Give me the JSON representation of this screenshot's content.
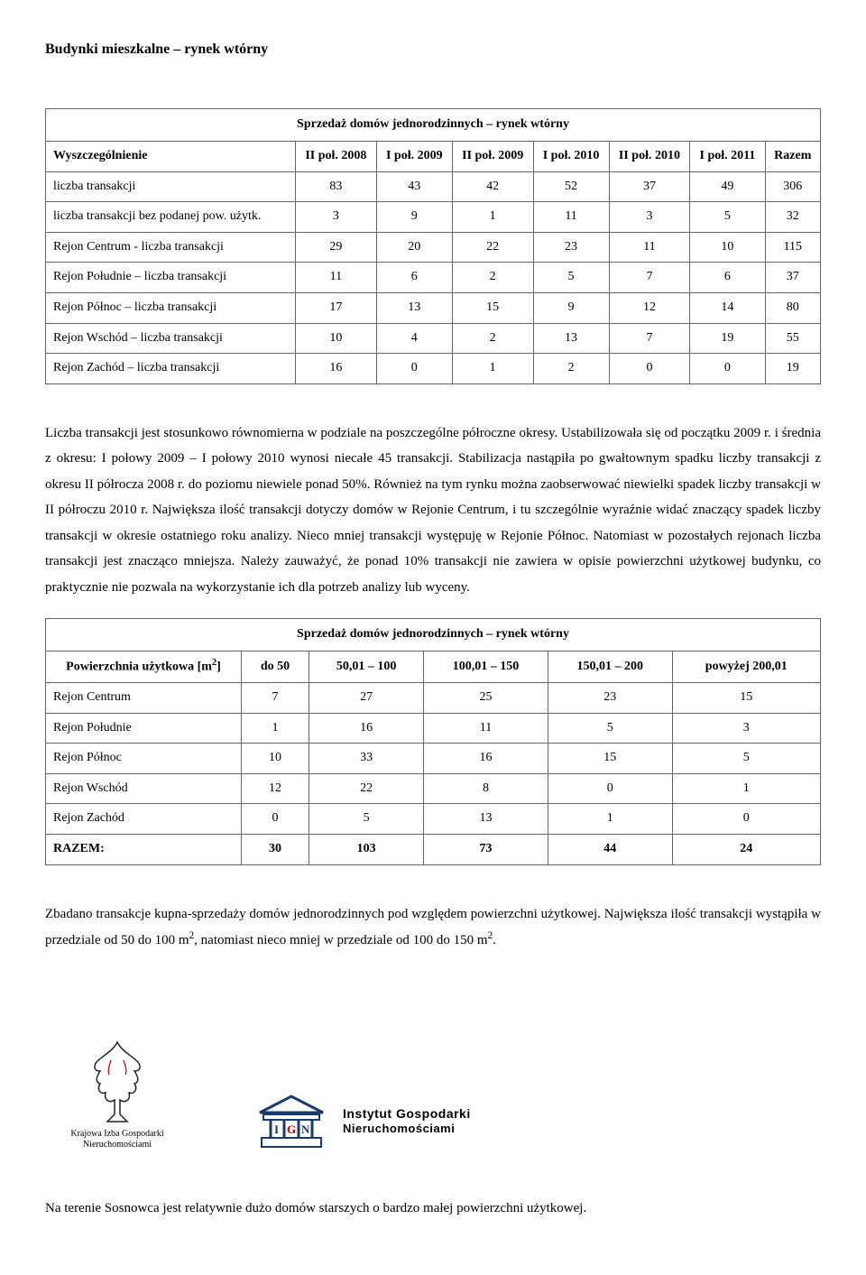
{
  "title": "Budynki mieszkalne – rynek wtórny",
  "table1": {
    "title": "Sprzedaż domów jednorodzinnych – rynek wtórny",
    "col_label": "Wyszczególnienie",
    "columns": [
      "II poł. 2008",
      "I poł. 2009",
      "II poł. 2009",
      "I poł. 2010",
      "II poł. 2010",
      "I poł. 2011",
      "Razem"
    ],
    "rows": [
      {
        "label": "liczba transakcji",
        "vals": [
          "83",
          "43",
          "42",
          "52",
          "37",
          "49",
          "306"
        ]
      },
      {
        "label": "liczba transakcji bez podanej pow. użytk.",
        "vals": [
          "3",
          "9",
          "1",
          "11",
          "3",
          "5",
          "32"
        ]
      },
      {
        "label": "Rejon Centrum - liczba transakcji",
        "vals": [
          "29",
          "20",
          "22",
          "23",
          "11",
          "10",
          "115"
        ]
      },
      {
        "label": "Rejon Południe – liczba transakcji",
        "vals": [
          "11",
          "6",
          "2",
          "5",
          "7",
          "6",
          "37"
        ]
      },
      {
        "label": "Rejon Północ – liczba transakcji",
        "vals": [
          "17",
          "13",
          "15",
          "9",
          "12",
          "14",
          "80"
        ]
      },
      {
        "label": "Rejon Wschód – liczba transakcji",
        "vals": [
          "10",
          "4",
          "2",
          "13",
          "7",
          "19",
          "55"
        ]
      },
      {
        "label": "Rejon Zachód – liczba transakcji",
        "vals": [
          "16",
          "0",
          "1",
          "2",
          "0",
          "0",
          "19"
        ]
      }
    ]
  },
  "para1": "Liczba transakcji jest stosunkowo równomierna w podziale na poszczególne półroczne okresy.  Ustabilizowała się od początku 2009 r. i średnia z okresu: I połowy 2009 – I połowy 2010 wynosi niecałe 45 transakcji. Stabilizacja nastąpiła po gwałtownym spadku liczby transakcji z okresu II półrocza 2008 r. do poziomu niewiele ponad 50%. Również na tym rynku można zaobserwować niewielki spadek liczby transakcji w II półroczu 2010 r. Największa ilość transakcji dotyczy domów w Rejonie Centrum, i tu szczególnie wyraźnie widać znaczący spadek liczby transakcji w okresie ostatniego roku analizy. Nieco mniej transakcji występuję w Rejonie Północ. Natomiast w pozostałych rejonach liczba transakcji jest znacząco mniejsza. Należy zauważyć, że ponad 10% transakcji nie zawiera w opisie powierzchni użytkowej budynku, co praktycznie nie pozwala na wykorzystanie ich dla potrzeb analizy lub wyceny.",
  "table2": {
    "title": "Sprzedaż domów jednorodzinnych – rynek wtórny",
    "col_label_html": "Powierzchnia użytkowa [m²]",
    "columns": [
      "do 50",
      "50,01 – 100",
      "100,01 – 150",
      "150,01 – 200",
      "powyżej 200,01"
    ],
    "rows": [
      {
        "label": "Rejon Centrum",
        "vals": [
          "7",
          "27",
          "25",
          "23",
          "15"
        ]
      },
      {
        "label": "Rejon Południe",
        "vals": [
          "1",
          "16",
          "11",
          "5",
          "3"
        ]
      },
      {
        "label": "Rejon Północ",
        "vals": [
          "10",
          "33",
          "16",
          "15",
          "5"
        ]
      },
      {
        "label": "Rejon Wschód",
        "vals": [
          "12",
          "22",
          "8",
          "0",
          "1"
        ]
      },
      {
        "label": "Rejon Zachód",
        "vals": [
          "0",
          "5",
          "13",
          "1",
          "0"
        ]
      }
    ],
    "razem": {
      "label": "RAZEM:",
      "vals": [
        "30",
        "103",
        "73",
        "44",
        "24"
      ]
    }
  },
  "para2_html": "Zbadano transakcje kupna-sprzedaży domów jednorodzinnych pod względem powierzchni użytkowej. Największa ilość transakcji wystąpiła w przedziale od 50 do 100 m², natomiast nieco mniej w przedziale od 100 do 150 m².",
  "logo1_caption": "Krajowa Izba Gospodarki Nieruchomościami",
  "logo2_line1": "Instytut Gospodarki",
  "logo2_line2": "Nieruchomościami",
  "footer": "Na terenie Sosnowca jest relatywnie dużo domów starszych o bardzo małej powierzchni użytkowej."
}
